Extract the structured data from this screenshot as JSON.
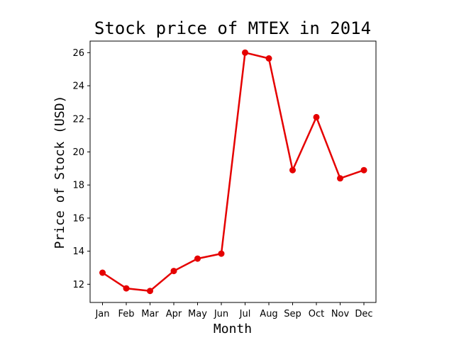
{
  "chart_data": {
    "type": "line",
    "title": "Stock price of MTEX in 2014",
    "xlabel": "Month",
    "ylabel": "Price of Stock (USD)",
    "categories": [
      "Jan",
      "Feb",
      "Mar",
      "Apr",
      "May",
      "Jun",
      "Jul",
      "Aug",
      "Sep",
      "Oct",
      "Nov",
      "Dec"
    ],
    "series": [
      {
        "values": [
          12.7,
          11.75,
          11.6,
          12.8,
          13.55,
          13.85,
          26.0,
          25.65,
          18.9,
          22.1,
          18.4,
          18.9
        ],
        "color": "#e50000"
      }
    ],
    "ylim": [
      10.9,
      26.7
    ],
    "yticks": [
      12,
      14,
      16,
      18,
      20,
      22,
      24,
      26
    ],
    "grid": false,
    "legend": false
  }
}
